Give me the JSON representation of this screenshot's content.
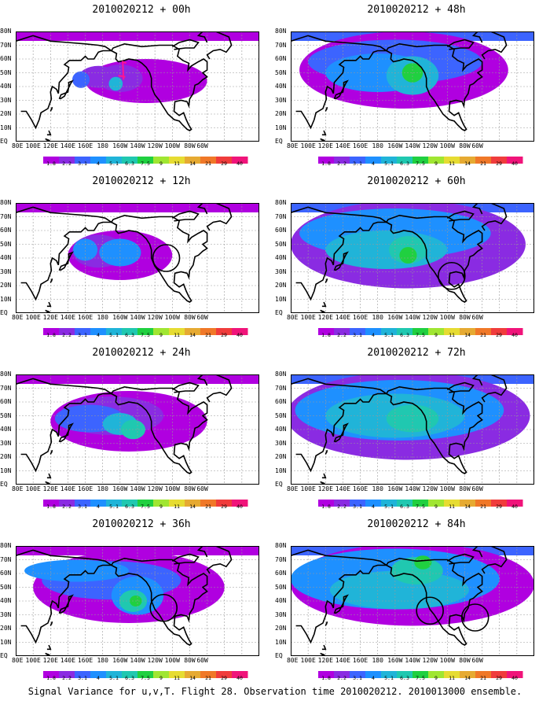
{
  "panels": [
    {
      "title": "2010020212 + 00h",
      "level": 0
    },
    {
      "title": "2010020212 + 48h",
      "level": 4
    },
    {
      "title": "2010020212 + 12h",
      "level": 1
    },
    {
      "title": "2010020212 + 60h",
      "level": 5
    },
    {
      "title": "2010020212 + 24h",
      "level": 2
    },
    {
      "title": "2010020212 + 72h",
      "level": 6
    },
    {
      "title": "2010020212 + 36h",
      "level": 3
    },
    {
      "title": "2010020212 + 84h",
      "level": 7
    }
  ],
  "lat_labels": [
    "80N",
    "70N",
    "60N",
    "50N",
    "40N",
    "30N",
    "20N",
    "10N",
    "EQ"
  ],
  "lon_labels": [
    "80E",
    "100E",
    "120E",
    "140E",
    "160E",
    "180",
    "160W",
    "140W",
    "120W",
    "100W",
    "80W",
    "60W"
  ],
  "colorbar": {
    "labels": [
      "1.8",
      "2.2",
      "3.1",
      "4",
      "5.1",
      "6.3",
      "7.5",
      "9",
      "11",
      "14",
      "21",
      "29",
      "40"
    ],
    "colors": [
      "#b000e0",
      "#8a2be2",
      "#3c64ff",
      "#1e90ff",
      "#20b4d8",
      "#20c8b0",
      "#20d040",
      "#a0e632",
      "#e6dc32",
      "#e6aa32",
      "#f07828",
      "#f03c3c",
      "#f0147a"
    ]
  },
  "caption": "Signal Variance for u,v,T. Flight 28. Observation time 2010020212. 2010013000 ensemble."
}
